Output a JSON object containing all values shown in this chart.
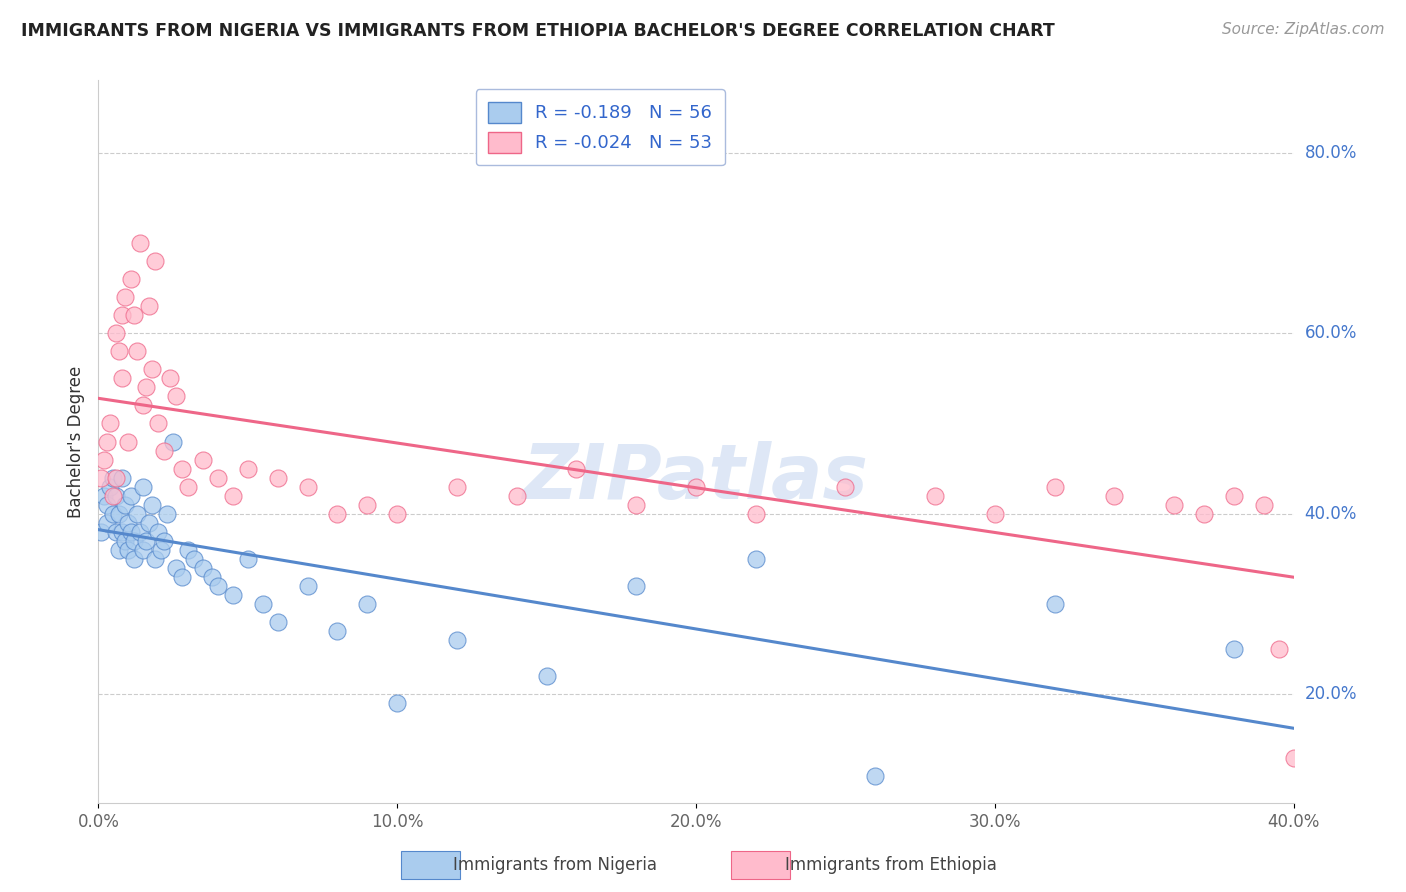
{
  "title": "IMMIGRANTS FROM NIGERIA VS IMMIGRANTS FROM ETHIOPIA BACHELOR'S DEGREE CORRELATION CHART",
  "source": "Source: ZipAtlas.com",
  "xlabel_legend1": "Immigrants from Nigeria",
  "xlabel_legend2": "Immigrants from Ethiopia",
  "ylabel": "Bachelor's Degree",
  "xlim": [
    0.0,
    0.4
  ],
  "ylim": [
    0.08,
    0.88
  ],
  "xticks": [
    0.0,
    0.1,
    0.2,
    0.3,
    0.4
  ],
  "yticks": [
    0.2,
    0.4,
    0.6,
    0.8
  ],
  "color_nigeria": "#AACCEE",
  "color_ethiopia": "#FFBBCC",
  "line_color_nigeria": "#5588CC",
  "line_color_ethiopia": "#EE6688",
  "R_nigeria": -0.189,
  "N_nigeria": 56,
  "R_ethiopia": -0.024,
  "N_ethiopia": 53,
  "nigeria_x": [
    0.001,
    0.002,
    0.003,
    0.003,
    0.004,
    0.005,
    0.005,
    0.006,
    0.006,
    0.007,
    0.007,
    0.008,
    0.008,
    0.009,
    0.009,
    0.01,
    0.01,
    0.011,
    0.011,
    0.012,
    0.012,
    0.013,
    0.014,
    0.015,
    0.015,
    0.016,
    0.017,
    0.018,
    0.019,
    0.02,
    0.021,
    0.022,
    0.023,
    0.025,
    0.026,
    0.028,
    0.03,
    0.032,
    0.035,
    0.038,
    0.04,
    0.045,
    0.05,
    0.055,
    0.06,
    0.07,
    0.08,
    0.09,
    0.1,
    0.12,
    0.15,
    0.18,
    0.22,
    0.26,
    0.32,
    0.38
  ],
  "nigeria_y": [
    0.38,
    0.42,
    0.41,
    0.39,
    0.43,
    0.44,
    0.4,
    0.38,
    0.42,
    0.36,
    0.4,
    0.38,
    0.44,
    0.37,
    0.41,
    0.36,
    0.39,
    0.38,
    0.42,
    0.35,
    0.37,
    0.4,
    0.38,
    0.36,
    0.43,
    0.37,
    0.39,
    0.41,
    0.35,
    0.38,
    0.36,
    0.37,
    0.4,
    0.48,
    0.34,
    0.33,
    0.36,
    0.35,
    0.34,
    0.33,
    0.32,
    0.31,
    0.35,
    0.3,
    0.28,
    0.32,
    0.27,
    0.3,
    0.19,
    0.26,
    0.22,
    0.32,
    0.35,
    0.11,
    0.3,
    0.25
  ],
  "ethiopia_x": [
    0.001,
    0.002,
    0.003,
    0.004,
    0.005,
    0.006,
    0.006,
    0.007,
    0.008,
    0.008,
    0.009,
    0.01,
    0.011,
    0.012,
    0.013,
    0.014,
    0.015,
    0.016,
    0.017,
    0.018,
    0.019,
    0.02,
    0.022,
    0.024,
    0.026,
    0.028,
    0.03,
    0.035,
    0.04,
    0.045,
    0.05,
    0.06,
    0.07,
    0.08,
    0.09,
    0.1,
    0.12,
    0.14,
    0.16,
    0.18,
    0.2,
    0.22,
    0.25,
    0.28,
    0.3,
    0.32,
    0.34,
    0.36,
    0.37,
    0.38,
    0.39,
    0.395,
    0.4
  ],
  "ethiopia_y": [
    0.44,
    0.46,
    0.48,
    0.5,
    0.42,
    0.44,
    0.6,
    0.58,
    0.62,
    0.55,
    0.64,
    0.48,
    0.66,
    0.62,
    0.58,
    0.7,
    0.52,
    0.54,
    0.63,
    0.56,
    0.68,
    0.5,
    0.47,
    0.55,
    0.53,
    0.45,
    0.43,
    0.46,
    0.44,
    0.42,
    0.45,
    0.44,
    0.43,
    0.4,
    0.41,
    0.4,
    0.43,
    0.42,
    0.45,
    0.41,
    0.43,
    0.4,
    0.43,
    0.42,
    0.4,
    0.43,
    0.42,
    0.41,
    0.4,
    0.42,
    0.41,
    0.25,
    0.13
  ]
}
